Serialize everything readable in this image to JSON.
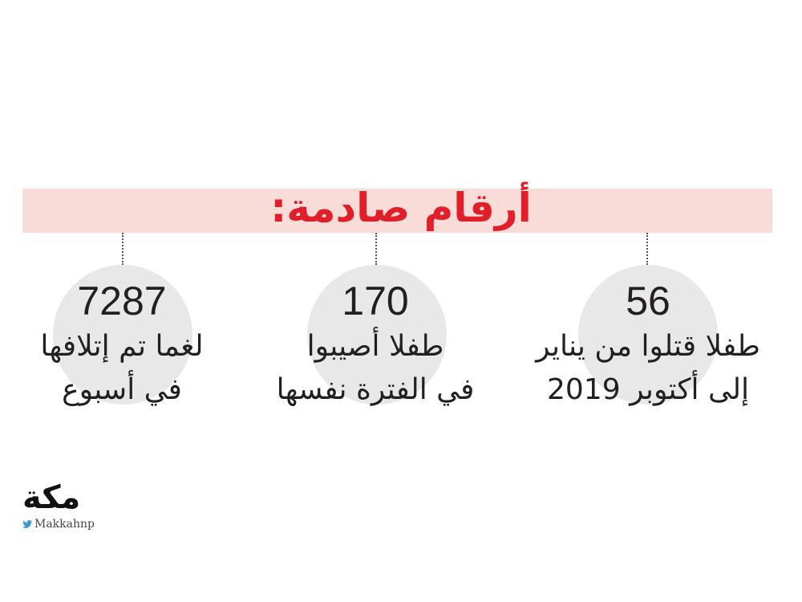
{
  "title": "أرقام صادمة:",
  "stats": [
    {
      "number": "56",
      "lines": [
        "طفلا قتلوا من يناير",
        "إلى أكتوبر 2019"
      ]
    },
    {
      "number": "170",
      "lines": [
        "طفلا أصيبوا",
        "في الفترة نفسها"
      ]
    },
    {
      "number": "7287",
      "lines": [
        "لغما تم إتلافها",
        "في أسبوع"
      ]
    }
  ],
  "logo": {
    "name": "مكة",
    "handle": "Makkahnp"
  }
}
